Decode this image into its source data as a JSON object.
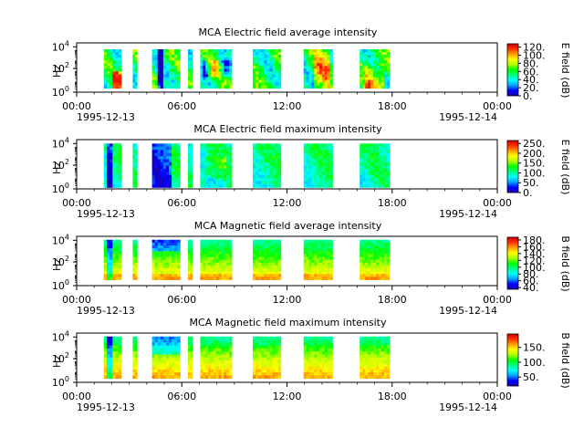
{
  "chart_data": [
    {
      "type": "heatmap",
      "title": "MCA  Electric field average intensity",
      "ylabel": "Hz",
      "y_scale": "log",
      "y_ticks": [
        {
          "base": "10",
          "exp": "0"
        },
        {
          "base": "10",
          "exp": "2"
        },
        {
          "base": "10",
          "exp": "4"
        }
      ],
      "x_ticks": [
        "00:00",
        "06:00",
        "12:00",
        "18:00",
        "00:00"
      ],
      "x_dates": [
        "1995-12-13",
        "1995-12-14"
      ],
      "colorbar_label": "E field (dB)",
      "colorbar_ticks": [
        "0.",
        "20.",
        "40.",
        "60.",
        "80.",
        "100.",
        "120."
      ],
      "colorbar_range": [
        0,
        128
      ],
      "palette": "rainbow",
      "data_blocks_hours": [
        [
          1.55,
          2.55
        ],
        [
          3.2,
          3.45
        ],
        [
          4.3,
          5.9
        ],
        [
          6.35,
          6.6
        ],
        [
          7.05,
          8.85
        ],
        [
          10.05,
          11.65
        ],
        [
          12.95,
          14.6
        ],
        [
          16.15,
          17.85
        ]
      ]
    },
    {
      "type": "heatmap",
      "title": "MCA  Electric field maximum intensity",
      "ylabel": "Hz",
      "y_scale": "log",
      "y_ticks": [
        {
          "base": "10",
          "exp": "0"
        },
        {
          "base": "10",
          "exp": "2"
        },
        {
          "base": "10",
          "exp": "4"
        }
      ],
      "x_ticks": [
        "00:00",
        "06:00",
        "12:00",
        "18:00",
        "00:00"
      ],
      "x_dates": [
        "1995-12-13",
        "1995-12-14"
      ],
      "colorbar_label": "E field (dB)",
      "colorbar_ticks": [
        "0.",
        "50.",
        "100.",
        "150.",
        "200.",
        "250."
      ],
      "colorbar_range": [
        0,
        265
      ],
      "palette": "rainbow",
      "data_blocks_hours": [
        [
          1.55,
          2.55
        ],
        [
          3.2,
          3.45
        ],
        [
          4.3,
          5.9
        ],
        [
          6.35,
          6.6
        ],
        [
          7.05,
          8.85
        ],
        [
          10.05,
          11.65
        ],
        [
          12.95,
          14.6
        ],
        [
          16.15,
          17.85
        ]
      ]
    },
    {
      "type": "heatmap",
      "title": "MCA  Magnetic field average intensity",
      "ylabel": "Hz",
      "y_scale": "log",
      "y_ticks": [
        {
          "base": "10",
          "exp": "0"
        },
        {
          "base": "10",
          "exp": "2"
        },
        {
          "base": "10",
          "exp": "4"
        }
      ],
      "x_ticks": [
        "00:00",
        "06:00",
        "12:00",
        "18:00",
        "00:00"
      ],
      "x_dates": [
        "1995-12-13",
        "1995-12-14"
      ],
      "colorbar_label": "B field (dB)",
      "colorbar_ticks": [
        "40.",
        "60.",
        "80.",
        "100.",
        "120.",
        "140.",
        "160.",
        "180."
      ],
      "colorbar_range": [
        35,
        188
      ],
      "palette": "rainbow",
      "data_blocks_hours": [
        [
          1.55,
          2.55
        ],
        [
          3.2,
          3.45
        ],
        [
          4.3,
          5.9
        ],
        [
          6.35,
          6.6
        ],
        [
          7.05,
          8.85
        ],
        [
          10.05,
          11.65
        ],
        [
          12.95,
          14.6
        ],
        [
          16.15,
          17.85
        ]
      ]
    },
    {
      "type": "heatmap",
      "title": "MCA  Magnetic field maximum intensity",
      "ylabel": "Hz",
      "y_scale": "log",
      "y_ticks": [
        {
          "base": "10",
          "exp": "0"
        },
        {
          "base": "10",
          "exp": "2"
        },
        {
          "base": "10",
          "exp": "4"
        }
      ],
      "x_ticks": [
        "00:00",
        "06:00",
        "12:00",
        "18:00",
        "00:00"
      ],
      "x_dates": [
        "1995-12-13",
        "1995-12-14"
      ],
      "colorbar_label": "B field (dB)",
      "colorbar_ticks": [
        "50.",
        "100.",
        "150."
      ],
      "colorbar_range": [
        20,
        195
      ],
      "palette": "rainbow",
      "data_blocks_hours": [
        [
          1.55,
          2.55
        ],
        [
          3.2,
          3.45
        ],
        [
          4.3,
          5.9
        ],
        [
          6.35,
          6.6
        ],
        [
          7.05,
          8.85
        ],
        [
          10.05,
          11.65
        ],
        [
          12.95,
          14.6
        ],
        [
          16.15,
          17.85
        ]
      ]
    }
  ],
  "colors": {
    "axis": "#000000",
    "background": "#ffffff",
    "palette_stops": [
      "#1a00b0",
      "#0000ff",
      "#00a0ff",
      "#00ffff",
      "#00ff80",
      "#00ff00",
      "#b0ff00",
      "#ffff00",
      "#ffa000",
      "#ff3000",
      "#d00000"
    ]
  }
}
